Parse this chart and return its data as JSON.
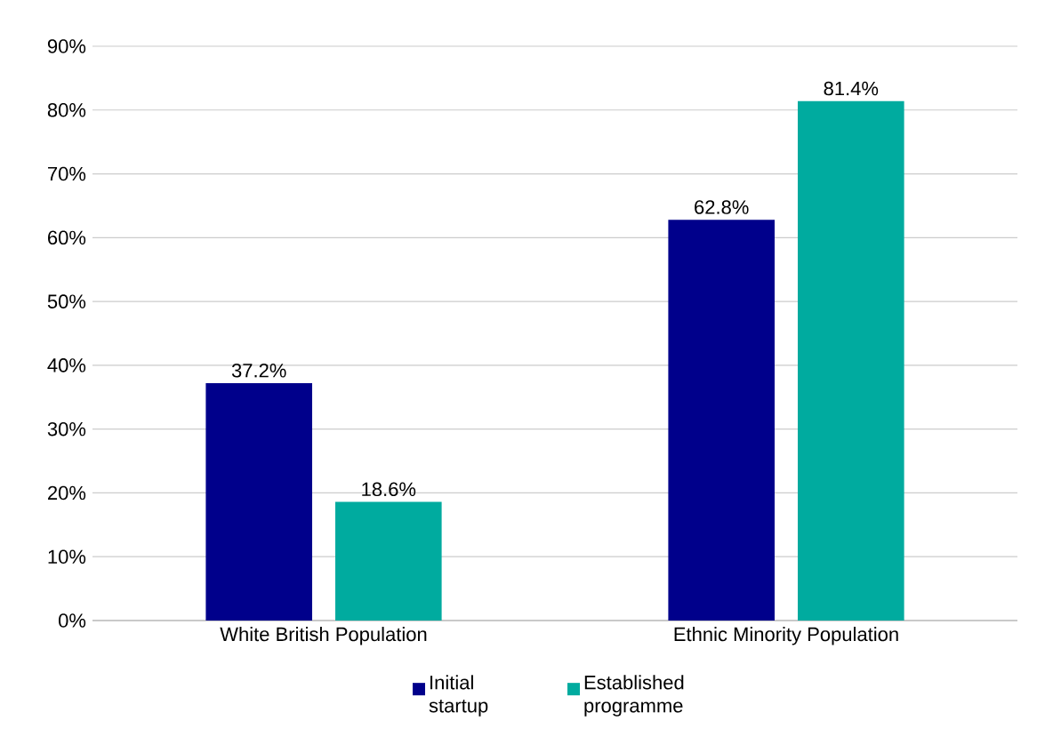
{
  "chart_data": {
    "type": "bar",
    "categories": [
      "White British Population",
      "Ethnic Minority Population"
    ],
    "series": [
      {
        "name": "Initial startup",
        "color": "#00008b",
        "values": [
          37.2,
          62.8
        ],
        "value_labels": [
          "37.2%",
          "62.8%"
        ]
      },
      {
        "name": "Established programme",
        "color": "#00ab9f",
        "values": [
          18.6,
          81.4
        ],
        "value_labels": [
          "18.6%",
          "81.4%"
        ]
      }
    ],
    "ylim": [
      0,
      90
    ],
    "yticks": [
      {
        "value": 0,
        "label": "0%"
      },
      {
        "value": 10,
        "label": "10%"
      },
      {
        "value": 20,
        "label": "20%"
      },
      {
        "value": 30,
        "label": "30%"
      },
      {
        "value": 40,
        "label": "40%"
      },
      {
        "value": 50,
        "label": "50%"
      },
      {
        "value": 60,
        "label": "60%"
      },
      {
        "value": 70,
        "label": "70%"
      },
      {
        "value": 80,
        "label": "80%"
      },
      {
        "value": 90,
        "label": "90%"
      }
    ],
    "grid": "y",
    "legend": "bottom"
  }
}
